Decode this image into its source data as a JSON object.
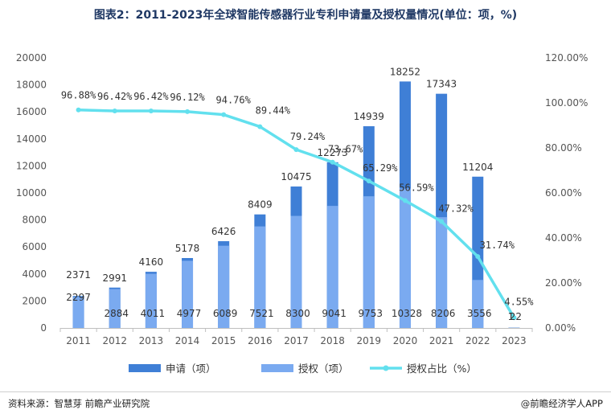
{
  "title": "图表2：2011-2023年全球智能传感器行业专利申请量及授权量情况(单位：项，%)",
  "source": "资料来源：智慧芽 前瞻产业研究院",
  "brand": "@前瞻经济学人APP",
  "colors": {
    "applications": "#3f7fd6",
    "grants": "#7aaaf0",
    "ratio": "#62e0ee",
    "title": "#1f3864"
  },
  "chart_data": {
    "type": "bar",
    "categories": [
      "2011",
      "2012",
      "2013",
      "2014",
      "2015",
      "2016",
      "2017",
      "2018",
      "2019",
      "2020",
      "2021",
      "2022",
      "2023"
    ],
    "series": [
      {
        "name": "申请（项）",
        "type": "bar",
        "axis": "left",
        "values": [
          2371,
          2991,
          4160,
          5178,
          6426,
          8409,
          10475,
          12273,
          14939,
          18252,
          17343,
          11204,
          22
        ]
      },
      {
        "name": "授权（项）",
        "type": "bar",
        "axis": "left",
        "values": [
          2297,
          2884,
          4011,
          4977,
          6089,
          7521,
          8300,
          9041,
          9753,
          10328,
          8206,
          3556,
          1
        ]
      },
      {
        "name": "授权占比（%）",
        "type": "line",
        "axis": "right",
        "values": [
          96.88,
          96.42,
          96.42,
          96.12,
          94.76,
          89.44,
          79.24,
          73.67,
          65.29,
          56.59,
          47.32,
          31.74,
          4.55
        ]
      }
    ],
    "bar_labels_applications": [
      "2371",
      "2991",
      "4160",
      "5178",
      "6426",
      "8409",
      "10475",
      "12273",
      "14939",
      "18252",
      "17343",
      "11204",
      "22"
    ],
    "bar_labels_grants": [
      "2297",
      "2884",
      "4011",
      "4977",
      "6089",
      "7521",
      "8300",
      "9041",
      "9753",
      "10328",
      "8206",
      "3556",
      "1"
    ],
    "point_labels": [
      "96.88%",
      "96.42%",
      "96.42%",
      "96.12%",
      "94.76%",
      "89.44%",
      "79.24%",
      "73.67%",
      "65.29%",
      "56.59%",
      "47.32%",
      "31.74%",
      "4.55%"
    ],
    "y_left": {
      "min": 0,
      "max": 20000,
      "ticks": [
        "0",
        "2000",
        "4000",
        "6000",
        "8000",
        "10000",
        "12000",
        "14000",
        "16000",
        "18000",
        "20000"
      ]
    },
    "y_right": {
      "min": 0,
      "max": 120,
      "ticks": [
        "0.00%",
        "20.00%",
        "40.00%",
        "60.00%",
        "80.00%",
        "100.00%",
        "120.00%"
      ]
    },
    "legend": [
      "申请（项）",
      "授权（项）",
      "授权占比（%）"
    ],
    "legend_position": "bottom",
    "grid": false
  }
}
